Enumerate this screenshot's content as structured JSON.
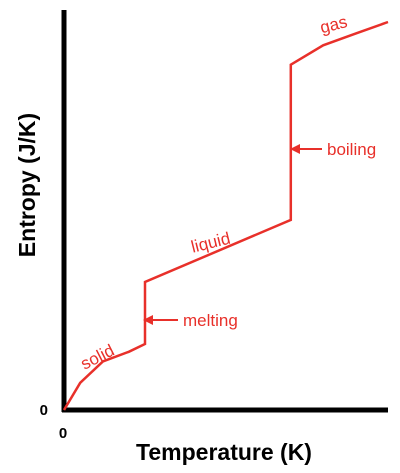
{
  "chart_data": {
    "type": "line",
    "title": "",
    "xlabel": "Temperature (K)",
    "ylabel": "Entropy (J/K)",
    "x_tick_labels": [
      "0"
    ],
    "y_tick_labels": [
      "0"
    ],
    "xlim": [
      0,
      100
    ],
    "ylim": [
      0,
      100
    ],
    "line_color": "#e8302a",
    "axis_color": "#000000",
    "series": [
      {
        "x": [
          0,
          5,
          12,
          20,
          25,
          25,
          70,
          70,
          80,
          90,
          100
        ],
        "y": [
          0,
          7,
          12.5,
          15,
          17,
          33,
          49,
          89,
          94,
          97,
          100
        ]
      }
    ],
    "phase_labels": [
      {
        "text": "solid"
      },
      {
        "text": "liquid"
      },
      {
        "text": "gas"
      }
    ],
    "annotations": [
      {
        "text": "melting"
      },
      {
        "text": "boiling"
      }
    ]
  }
}
